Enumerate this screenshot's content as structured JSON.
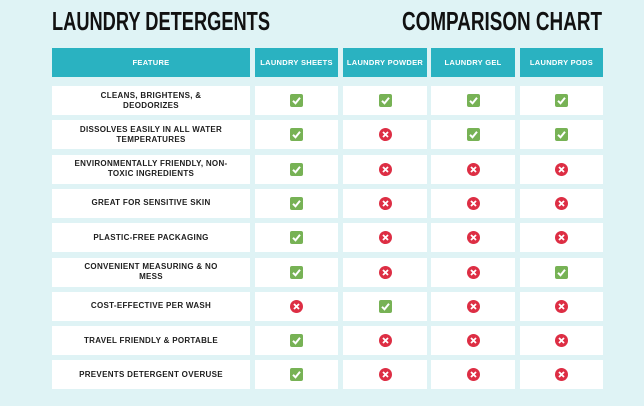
{
  "header": {
    "title_left": "LAUNDRY DETERGENTS",
    "title_right": "COMPARISON CHART"
  },
  "table": {
    "columns": [
      "FEATURE",
      "LAUNDRY SHEETS",
      "LAUNDRY POWDER",
      "LAUNDRY GEL",
      "LAUNDRY PODS"
    ],
    "rows": [
      {
        "feature": "CLEANS, BRIGHTENS, & DEODORIZES",
        "cells": [
          true,
          true,
          true,
          true
        ]
      },
      {
        "feature": "DISSOLVES EASILY IN ALL WATER TEMPERATURES",
        "cells": [
          true,
          false,
          true,
          true
        ]
      },
      {
        "feature": "ENVIRONMENTALLY FRIENDLY, NON-TOXIC INGREDIENTS",
        "cells": [
          true,
          false,
          false,
          false
        ]
      },
      {
        "feature": "GREAT FOR SENSITIVE SKIN",
        "cells": [
          true,
          false,
          false,
          false
        ]
      },
      {
        "feature": "PLASTIC-FREE PACKAGING",
        "cells": [
          true,
          false,
          false,
          false
        ]
      },
      {
        "feature": "CONVENIENT MEASURING & NO MESS",
        "cells": [
          true,
          false,
          false,
          true
        ]
      },
      {
        "feature": "COST-EFFECTIVE PER WASH",
        "cells": [
          false,
          true,
          false,
          false
        ]
      },
      {
        "feature": "TRAVEL FRIENDLY & PORTABLE",
        "cells": [
          true,
          false,
          false,
          false
        ]
      },
      {
        "feature": "PREVENTS DETERGENT OVERUSE",
        "cells": [
          true,
          false,
          false,
          false
        ]
      }
    ]
  }
}
